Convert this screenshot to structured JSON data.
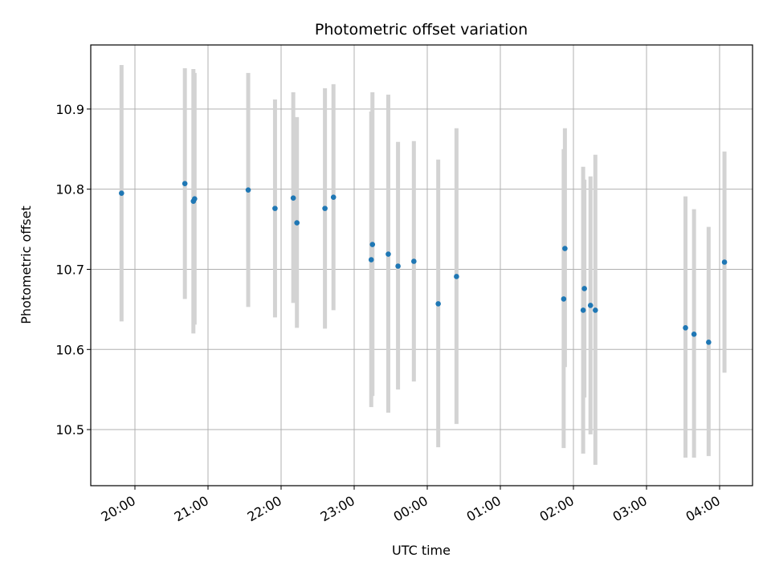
{
  "chart_data": {
    "type": "scatter",
    "title": "Photometric offset variation",
    "xlabel": "UTC time",
    "ylabel": "Photometric offset",
    "x_ticks": [
      "20:00",
      "21:00",
      "22:00",
      "23:00",
      "00:00",
      "01:00",
      "02:00",
      "03:00",
      "04:00"
    ],
    "y_ticks": [
      "10.5",
      "10.6",
      "10.7",
      "10.8",
      "10.9"
    ],
    "ylim": [
      10.43,
      10.98
    ],
    "grid": true,
    "colors": {
      "points": "#1f77b4",
      "errorbars": "#d3d3d3",
      "grid": "#b0b0b0"
    },
    "series": [
      {
        "points": [
          {
            "t": "19:49",
            "y": 10.795,
            "lo": 10.635,
            "hi": 10.955
          },
          {
            "t": "20:41",
            "y": 10.807,
            "lo": 10.663,
            "hi": 10.951
          },
          {
            "t": "20:48",
            "y": 10.785,
            "lo": 10.62,
            "hi": 10.95
          },
          {
            "t": "20:49",
            "y": 10.788,
            "lo": 10.631,
            "hi": 10.945
          },
          {
            "t": "21:33",
            "y": 10.799,
            "lo": 10.653,
            "hi": 10.945
          },
          {
            "t": "21:55",
            "y": 10.776,
            "lo": 10.64,
            "hi": 10.912
          },
          {
            "t": "22:10",
            "y": 10.789,
            "lo": 10.658,
            "hi": 10.921
          },
          {
            "t": "22:13",
            "y": 10.758,
            "lo": 10.627,
            "hi": 10.89
          },
          {
            "t": "22:36",
            "y": 10.776,
            "lo": 10.626,
            "hi": 10.926
          },
          {
            "t": "22:43",
            "y": 10.79,
            "lo": 10.649,
            "hi": 10.931
          },
          {
            "t": "23:14",
            "y": 10.712,
            "lo": 10.528,
            "hi": 10.897
          },
          {
            "t": "23:15",
            "y": 10.731,
            "lo": 10.542,
            "hi": 10.921
          },
          {
            "t": "23:28",
            "y": 10.719,
            "lo": 10.521,
            "hi": 10.918
          },
          {
            "t": "23:36",
            "y": 10.704,
            "lo": 10.55,
            "hi": 10.859
          },
          {
            "t": "23:49",
            "y": 10.71,
            "lo": 10.56,
            "hi": 10.86
          },
          {
            "t": "00:09",
            "y": 10.657,
            "lo": 10.478,
            "hi": 10.837
          },
          {
            "t": "00:24",
            "y": 10.691,
            "lo": 10.507,
            "hi": 10.876
          },
          {
            "t": "01:52",
            "y": 10.663,
            "lo": 10.477,
            "hi": 10.85
          },
          {
            "t": "01:53",
            "y": 10.726,
            "lo": 10.578,
            "hi": 10.876
          },
          {
            "t": "02:08",
            "y": 10.649,
            "lo": 10.47,
            "hi": 10.828
          },
          {
            "t": "02:09",
            "y": 10.676,
            "lo": 10.54,
            "hi": 10.812
          },
          {
            "t": "02:14",
            "y": 10.655,
            "lo": 10.494,
            "hi": 10.816
          },
          {
            "t": "02:18",
            "y": 10.649,
            "lo": 10.456,
            "hi": 10.843
          },
          {
            "t": "03:32",
            "y": 10.627,
            "lo": 10.465,
            "hi": 10.791
          },
          {
            "t": "03:39",
            "y": 10.619,
            "lo": 10.465,
            "hi": 10.775
          },
          {
            "t": "03:51",
            "y": 10.609,
            "lo": 10.467,
            "hi": 10.753
          },
          {
            "t": "04:04",
            "y": 10.709,
            "lo": 10.571,
            "hi": 10.847
          }
        ]
      }
    ]
  }
}
